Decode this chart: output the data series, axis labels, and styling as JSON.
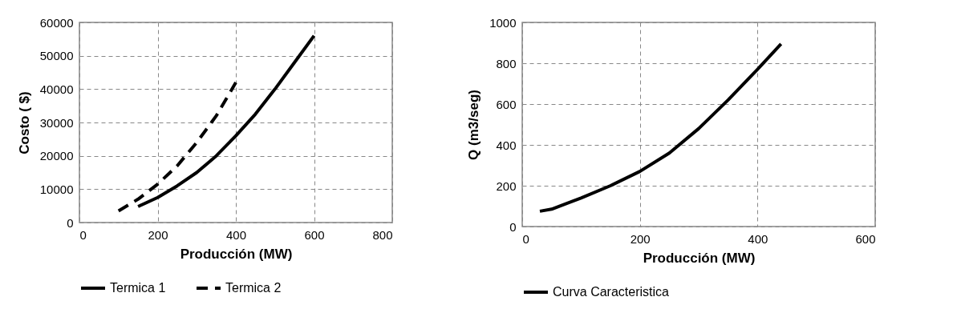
{
  "chart_data": [
    {
      "type": "line",
      "xlabel": "Producción (MW)",
      "ylabel": "Costo  ( $)",
      "xlim": [
        0,
        800
      ],
      "xticks": [
        0,
        200,
        400,
        600,
        800
      ],
      "ylim": [
        0,
        60000
      ],
      "yticks": [
        0,
        10000,
        20000,
        30000,
        40000,
        50000,
        60000
      ],
      "grid": true,
      "legend": "bottom",
      "series": [
        {
          "name": "Termica 1",
          "color": "#000000",
          "line_style": "solid",
          "x": [
            150,
            200,
            250,
            300,
            350,
            400,
            450,
            500,
            550,
            600
          ],
          "values": [
            4800,
            7500,
            11000,
            15000,
            20000,
            26000,
            32500,
            40000,
            48000,
            56000
          ]
        },
        {
          "name": "Termica 2",
          "color": "#000000",
          "line_style": "dashed",
          "x": [
            100,
            150,
            200,
            250,
            300,
            350,
            400
          ],
          "values": [
            3500,
            7000,
            11500,
            17000,
            24000,
            32000,
            42000
          ]
        }
      ]
    },
    {
      "type": "line",
      "xlabel": "Producción (MW)",
      "ylabel": "Q  (m3/seg)",
      "xlim": [
        0,
        600
      ],
      "xticks": [
        0,
        200,
        400,
        600
      ],
      "ylim": [
        0,
        1000
      ],
      "yticks": [
        0,
        200,
        400,
        600,
        800,
        1000
      ],
      "grid": true,
      "legend": "bottom",
      "series": [
        {
          "name": "Curva Caracteristica",
          "color": "#000000",
          "line_style": "solid",
          "x": [
            30,
            50,
            100,
            150,
            200,
            250,
            300,
            350,
            400,
            440
          ],
          "values": [
            75,
            85,
            140,
            200,
            270,
            360,
            480,
            620,
            770,
            895
          ]
        }
      ]
    }
  ]
}
